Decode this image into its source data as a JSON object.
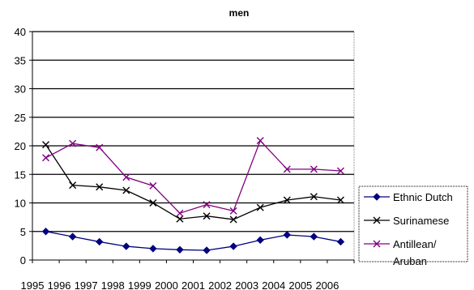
{
  "chart_data": {
    "type": "line",
    "title": "men",
    "xlabel": "",
    "ylabel": "",
    "x": [
      "1995",
      "1996",
      "1997",
      "1998",
      "1999",
      "2000",
      "2001",
      "2002",
      "2003",
      "2004",
      "2005",
      "2006"
    ],
    "ylim": [
      0,
      40
    ],
    "yticks": [
      0,
      5,
      10,
      15,
      20,
      25,
      30,
      35,
      40
    ],
    "grid": true,
    "legend_position": "right",
    "series": [
      {
        "name": "Ethnic Dutch",
        "marker": "diamond",
        "color": "#000080",
        "values": [
          5.0,
          4.1,
          3.2,
          2.4,
          2.0,
          1.8,
          1.7,
          2.4,
          3.5,
          4.4,
          4.1,
          3.2
        ]
      },
      {
        "name": "Surinamese",
        "marker": "x",
        "color": "#000000",
        "values": [
          20.2,
          13.1,
          12.8,
          12.2,
          10.0,
          7.2,
          7.7,
          7.1,
          9.2,
          10.5,
          11.1,
          10.5
        ]
      },
      {
        "name": "Antillean/ Aruban",
        "name_lines": [
          "Antillean/",
          "Aruban"
        ],
        "marker": "x",
        "color": "#800080",
        "values": [
          17.9,
          20.4,
          19.7,
          14.5,
          13.0,
          8.2,
          9.7,
          8.6,
          20.9,
          15.9,
          15.9,
          15.6
        ]
      }
    ]
  }
}
